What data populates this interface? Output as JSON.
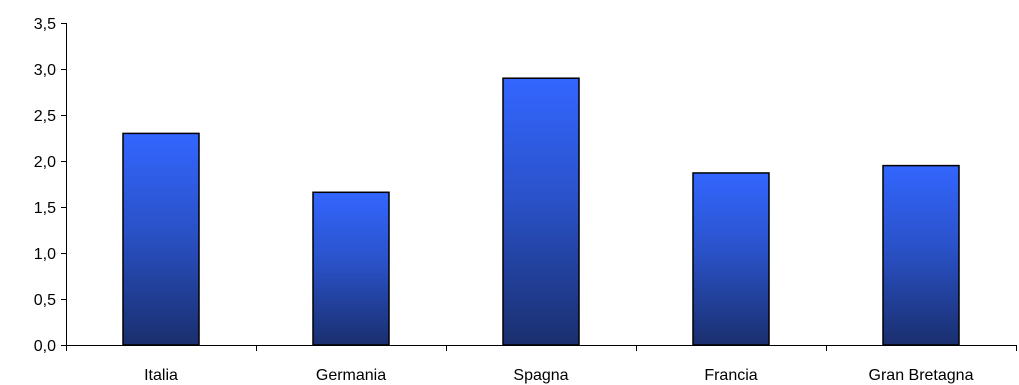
{
  "chart_data": {
    "type": "bar",
    "title": "",
    "xlabel": "",
    "ylabel": "",
    "categories": [
      "Italia",
      "Germania",
      "Spagna",
      "Francia",
      "Gran Bretagna"
    ],
    "values": [
      2.3,
      1.66,
      2.9,
      1.87,
      1.95
    ],
    "ylim": [
      0,
      3.5
    ],
    "yticks": [
      "0,0",
      "0,5",
      "1,0",
      "1,5",
      "2,0",
      "2,5",
      "3,0",
      "3,5"
    ],
    "grid": false,
    "legend": "none",
    "colors": {
      "bar_top": "#3366ff",
      "bar_mid": "#2a52c9",
      "bar_bottom": "#1a2f6e",
      "bar_stroke": "#000000",
      "axis": "#000000"
    }
  }
}
